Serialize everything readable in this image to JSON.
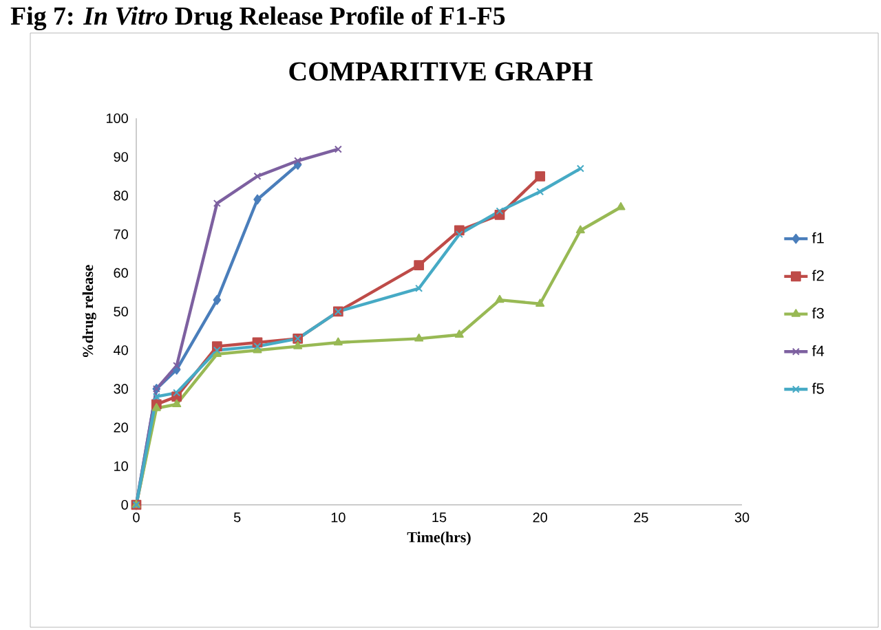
{
  "chart_data": {
    "type": "line",
    "title": "COMPARITIVE GRAPH",
    "xlabel": "Time(hrs)",
    "ylabel": "%drug release",
    "annotations": [
      "**Fig 7: *In Vitro* Drug Release Profile of F1-F5**"
    ],
    "xlim": [
      0,
      30
    ],
    "ylim": [
      0,
      100
    ],
    "xticks": [
      0,
      5,
      10,
      15,
      20,
      25,
      30
    ],
    "yticks": [
      0,
      10,
      20,
      30,
      40,
      50,
      60,
      70,
      80,
      90,
      100
    ],
    "grid": false,
    "legend": "right",
    "line_style": "solid",
    "series": [
      {
        "name": "f1",
        "color": "#4a7ebb",
        "marker": "diamond",
        "x": [
          0,
          1,
          2,
          4,
          6,
          8
        ],
        "values": [
          0,
          30,
          35,
          53,
          79,
          88
        ]
      },
      {
        "name": "f2",
        "color": "#be4b48",
        "marker": "square",
        "x": [
          0,
          1,
          2,
          4,
          6,
          8,
          10,
          14,
          16,
          18,
          20
        ],
        "values": [
          0,
          26,
          28,
          41,
          42,
          43,
          50,
          62,
          71,
          75,
          85
        ]
      },
      {
        "name": "f3",
        "color": "#98b954",
        "marker": "triangle",
        "x": [
          0,
          1,
          2,
          4,
          6,
          8,
          10,
          14,
          16,
          18,
          20,
          22,
          24
        ],
        "values": [
          0,
          25,
          26,
          39,
          40,
          41,
          42,
          43,
          44,
          53,
          52,
          71,
          77
        ]
      },
      {
        "name": "f4",
        "color": "#7d60a0",
        "marker": "cross",
        "x": [
          0,
          1,
          2,
          4,
          6,
          8,
          10
        ],
        "values": [
          0,
          30,
          36,
          78,
          85,
          89,
          92
        ]
      },
      {
        "name": "f5",
        "color": "#46aac5",
        "marker": "cross",
        "x": [
          0,
          1,
          2,
          4,
          6,
          8,
          10,
          14,
          16,
          18,
          20,
          22
        ],
        "values": [
          0,
          28,
          29,
          40,
          41,
          43,
          50,
          56,
          70,
          76,
          81,
          87
        ]
      }
    ]
  }
}
